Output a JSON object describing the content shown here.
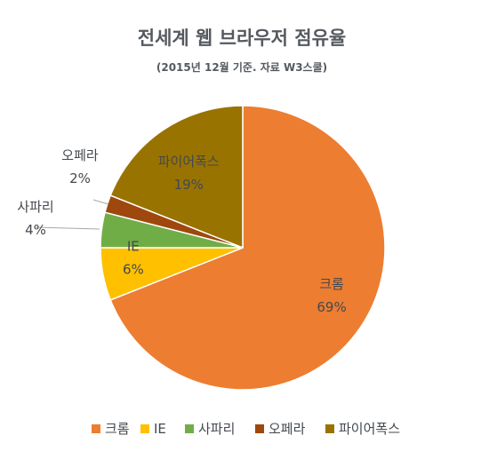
{
  "chart_data": {
    "type": "pie",
    "title": "전세계 웹 브라우저 점유율",
    "subtitle": "(2015년 12월 기준. 자료 W3스쿨)",
    "categories": [
      "크롬",
      "IE",
      "사파리",
      "오페라",
      "파이어폭스"
    ],
    "values": [
      69,
      6,
      4,
      2,
      19
    ],
    "value_labels": [
      "69%",
      "6%",
      "4%",
      "2%",
      "19%"
    ],
    "colors": [
      "#ed7d31",
      "#ffc000",
      "#70ad47",
      "#9e480e",
      "#997300"
    ],
    "start_angle_deg": 0,
    "direction": "clockwise",
    "legend_position": "bottom"
  }
}
